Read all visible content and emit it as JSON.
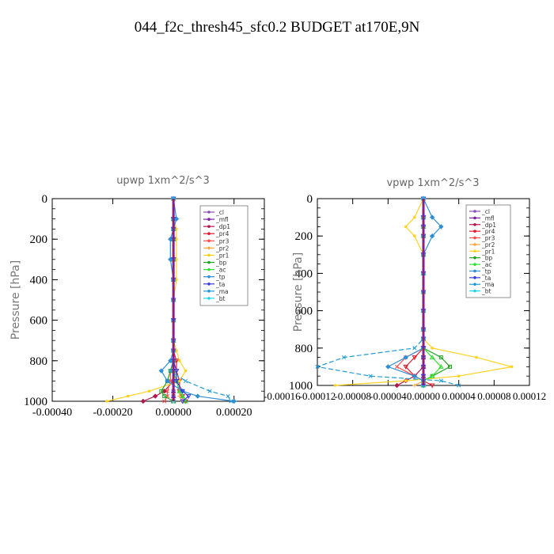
{
  "figure_title": "044_f2c_thresh45_sfc0.2  BUDGET at170E,9N",
  "legend_entries": [
    "_cl",
    "_mfl",
    "_dp1",
    "_pr4",
    "_pr3",
    "_pr2",
    "_pr1",
    "_bp",
    "_ac",
    "_tp",
    "_ta",
    "_ma",
    "_bt"
  ],
  "series_colors": {
    "_cl": "#8a4fb3",
    "_mfl": "#7b1fa2",
    "_dp1": "#b0184a",
    "_pr4": "#e0182d",
    "_pr3": "#ff4d4d",
    "_pr2": "#ffa640",
    "_pr1": "#ffd21f",
    "_bp": "#1fa31f",
    "_ac": "#33dd33",
    "_tp": "#2f8fd6",
    "_ta": "#3b3bd9",
    "_ma": "#1f9ad6",
    "_bt": "#22d3e6"
  },
  "chart_data": [
    {
      "type": "line",
      "title": "upwp   1xm^2/s^3",
      "ylabel": "Pressure [hPa]",
      "xlim": [
        -0.0004,
        0.0003
      ],
      "ylim": [
        1000,
        0
      ],
      "x_ticks": [
        "-0.00040",
        "-0.00020",
        "0.00000",
        "0.00020"
      ],
      "y_ticks": [
        "0",
        "200",
        "400",
        "600",
        "800",
        "1000"
      ],
      "legend_position": "top-right",
      "pressure_levels": [
        0,
        100,
        150,
        200,
        300,
        400,
        500,
        600,
        700,
        750,
        800,
        850,
        900,
        950,
        975,
        1000
      ],
      "series": [
        {
          "name": "_cl",
          "values": [
            0,
            0,
            0,
            0,
            0,
            0,
            0,
            0,
            0,
            0,
            0,
            0,
            0,
            0,
            0,
            0
          ]
        },
        {
          "name": "_mfl",
          "values": [
            0,
            0,
            0,
            0,
            0,
            0,
            0,
            0,
            0,
            0,
            0,
            0,
            0,
            0,
            0,
            0
          ]
        },
        {
          "name": "_dp1",
          "values": [
            0,
            0,
            0,
            0,
            0,
            0,
            0,
            0,
            0,
            0,
            0,
            0,
            0,
            -3e-05,
            -6e-05,
            -0.0001
          ]
        },
        {
          "name": "_pr4",
          "values": [
            0,
            0,
            0,
            0,
            0,
            0,
            0,
            0,
            0,
            0,
            1e-05,
            1e-05,
            2e-05,
            2e-05,
            3e-05,
            4e-05
          ]
        },
        {
          "name": "_pr3",
          "values": [
            0,
            0,
            0,
            0,
            0,
            0,
            0,
            0,
            0,
            0,
            0,
            -1e-05,
            -1e-05,
            -2e-05,
            -2e-05,
            -3e-05
          ]
        },
        {
          "name": "_pr2",
          "values": [
            0,
            0,
            0,
            0,
            0,
            0,
            0,
            0,
            0,
            0,
            0,
            1e-05,
            1e-05,
            2e-05,
            2e-05,
            3e-05
          ]
        },
        {
          "name": "_pr1",
          "values": [
            0,
            0,
            1e-05,
            1e-05,
            1e-05,
            1e-05,
            0,
            0,
            0,
            1e-05,
            2e-05,
            4e-05,
            2e-05,
            -8e-05,
            -0.00015,
            -0.00022
          ]
        },
        {
          "name": "_bp",
          "values": [
            0,
            0,
            0,
            0,
            0,
            0,
            0,
            0,
            0,
            0,
            0,
            -1e-05,
            -2e-05,
            -4e-05,
            -3e-05,
            0
          ]
        },
        {
          "name": "_ac",
          "values": [
            0,
            0,
            0,
            0,
            0,
            0,
            0,
            0,
            0,
            0,
            0,
            0,
            1e-05,
            2e-05,
            3e-05,
            4e-05
          ]
        },
        {
          "name": "_tp",
          "values": [
            0,
            1e-05,
            0,
            -1e-05,
            -1e-05,
            0,
            0,
            0,
            0,
            0,
            -1e-05,
            -4e-05,
            -2e-05,
            3e-05,
            8e-05,
            0.0002
          ]
        },
        {
          "name": "_ta",
          "values": [
            0,
            0,
            0,
            0,
            0,
            0,
            0,
            0,
            0,
            0,
            0,
            1e-05,
            1e-05,
            3e-05,
            5e-05,
            3e-05
          ]
        },
        {
          "name": "_ma",
          "values": [
            0,
            0,
            0,
            0,
            0,
            0,
            0,
            0,
            0,
            0,
            0,
            -1e-05,
            4e-05,
            0.00012,
            0.00018,
            0.00019
          ]
        },
        {
          "name": "_bt",
          "values": [
            0,
            0,
            0,
            0,
            0,
            0,
            0,
            0,
            0,
            0,
            0,
            0,
            0,
            0,
            0,
            0
          ]
        }
      ]
    },
    {
      "type": "line",
      "title": "vpwp   1xm^2/s^3",
      "ylabel": "Pressure [hPa]",
      "xlim": [
        -0.00012,
        0.00012
      ],
      "ylim": [
        1000,
        0
      ],
      "x_ticks": [
        "-0.00016",
        "-0.00012",
        "-0.00008",
        "-0.00004",
        "0.00000",
        "0.00004",
        "0.00008",
        "0.00012"
      ],
      "y_ticks": [
        "0",
        "200",
        "400",
        "600",
        "800",
        "1000"
      ],
      "legend_position": "top-right",
      "pressure_levels": [
        0,
        100,
        150,
        200,
        300,
        400,
        500,
        600,
        700,
        750,
        800,
        850,
        900,
        950,
        975,
        1000
      ],
      "series": [
        {
          "name": "_cl",
          "values": [
            0,
            0,
            0,
            0,
            0,
            0,
            0,
            0,
            0,
            0,
            0,
            0,
            0,
            0,
            0,
            0
          ]
        },
        {
          "name": "_mfl",
          "values": [
            0,
            0,
            0,
            0,
            0,
            0,
            0,
            0,
            0,
            0,
            0,
            0,
            0,
            0,
            0,
            0
          ]
        },
        {
          "name": "_dp1",
          "values": [
            0,
            0,
            0,
            0,
            0,
            0,
            0,
            0,
            0,
            0,
            0,
            0,
            0,
            -1e-05,
            -2e-05,
            -3e-05
          ]
        },
        {
          "name": "_pr4",
          "values": [
            0,
            0,
            0,
            0,
            0,
            0,
            0,
            0,
            0,
            0,
            0,
            -1e-05,
            -2e-05,
            -1e-05,
            0,
            1e-05
          ]
        },
        {
          "name": "_pr3",
          "values": [
            0,
            0,
            0,
            0,
            0,
            0,
            0,
            0,
            0,
            0,
            0,
            -2e-05,
            -3e-05,
            -1e-05,
            0,
            0
          ]
        },
        {
          "name": "_pr2",
          "values": [
            0,
            0,
            0,
            0,
            0,
            0,
            0,
            0,
            0,
            0,
            0,
            0,
            0,
            0,
            0,
            -1e-05
          ]
        },
        {
          "name": "_pr1",
          "values": [
            0,
            -1e-05,
            -2e-05,
            -1e-05,
            0,
            0,
            0,
            0,
            0,
            0,
            1e-05,
            6e-05,
            0.0001,
            4e-05,
            -2e-05,
            -0.0001
          ]
        },
        {
          "name": "_bp",
          "values": [
            0,
            0,
            0,
            0,
            0,
            0,
            0,
            0,
            0,
            0,
            0,
            2e-05,
            3e-05,
            1e-05,
            0,
            0
          ]
        },
        {
          "name": "_ac",
          "values": [
            0,
            0,
            0,
            0,
            0,
            0,
            0,
            0,
            0,
            0,
            0,
            1e-05,
            2e-05,
            1e-05,
            0,
            0
          ]
        },
        {
          "name": "_tp",
          "values": [
            0,
            1e-05,
            2e-05,
            1e-05,
            0,
            0,
            0,
            0,
            0,
            0,
            0,
            -2e-05,
            -4e-05,
            -1e-05,
            0,
            0
          ]
        },
        {
          "name": "_ta",
          "values": [
            0,
            0,
            0,
            0,
            0,
            0,
            0,
            0,
            0,
            0,
            0,
            0,
            0,
            0,
            0,
            0
          ]
        },
        {
          "name": "_ma",
          "values": [
            0,
            0,
            0,
            0,
            0,
            0,
            0,
            0,
            0,
            0,
            -1e-05,
            -9e-05,
            -0.00012,
            -6e-05,
            2e-05,
            4e-05
          ]
        },
        {
          "name": "_bt",
          "values": [
            0,
            0,
            0,
            0,
            0,
            0,
            0,
            0,
            0,
            0,
            0,
            0,
            0,
            0,
            0,
            0
          ]
        }
      ]
    }
  ]
}
